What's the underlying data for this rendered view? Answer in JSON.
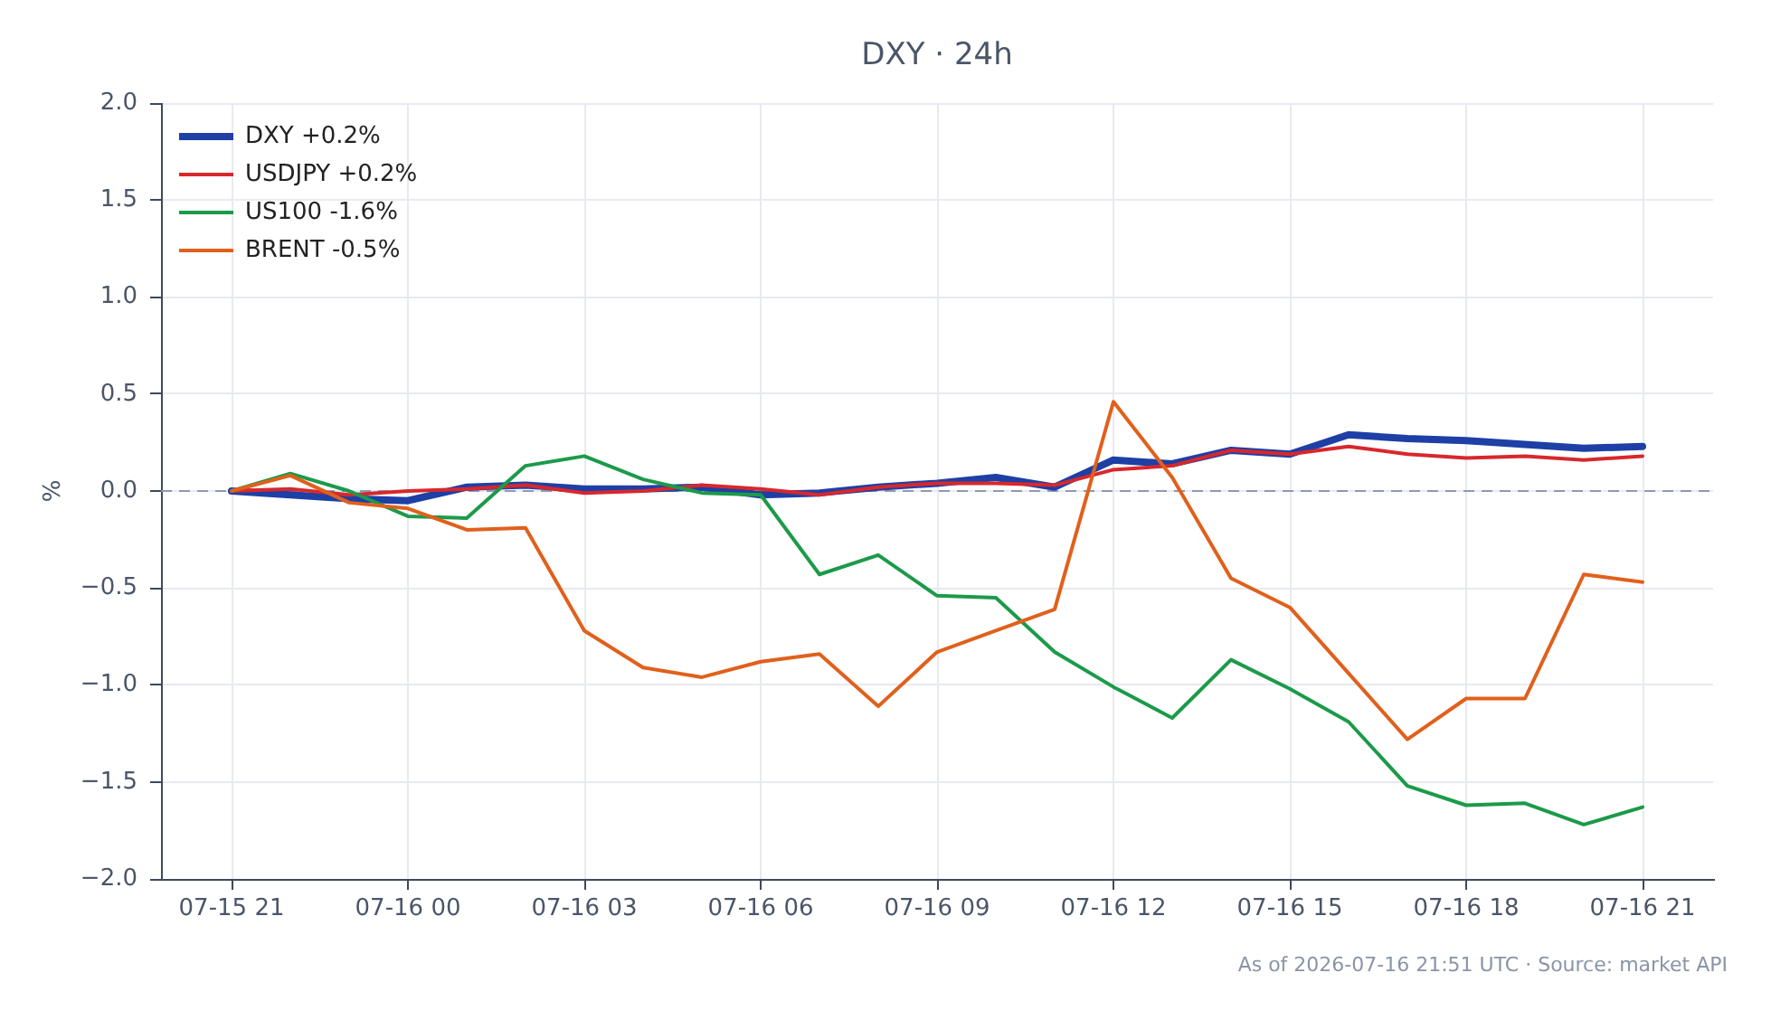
{
  "chart_data": {
    "type": "line",
    "title": "DXY · 24h",
    "ylabel": "%",
    "x": [
      "2026-07-15T21:00",
      "2026-07-15T22:00",
      "2026-07-15T23:00",
      "2026-07-16T00:00",
      "2026-07-16T01:00",
      "2026-07-16T02:00",
      "2026-07-16T03:00",
      "2026-07-16T04:00",
      "2026-07-16T05:00",
      "2026-07-16T06:00",
      "2026-07-16T07:00",
      "2026-07-16T08:00",
      "2026-07-16T09:00",
      "2026-07-16T10:00",
      "2026-07-16T11:00",
      "2026-07-16T12:00",
      "2026-07-16T13:00",
      "2026-07-16T14:00",
      "2026-07-16T15:00",
      "2026-07-16T16:00",
      "2026-07-16T17:00",
      "2026-07-16T18:00",
      "2026-07-16T19:00",
      "2026-07-16T20:00",
      "2026-07-16T21:00"
    ],
    "series": [
      {
        "name": "DXY +0.2%",
        "color": "#1e3fa6",
        "values": [
          0,
          -0.02,
          -0.04,
          -0.05,
          0.02,
          0.03,
          0.01,
          0.01,
          0.02,
          -0.02,
          -0.01,
          0.02,
          0.04,
          0.07,
          0.02,
          0.16,
          0.14,
          0.21,
          0.19,
          0.29,
          0.27,
          0.26,
          0.24,
          0.22,
          0.23
        ]
      },
      {
        "name": "USDJPY +0.2%",
        "color": "#d7282c",
        "values": [
          0,
          0.01,
          -0.02,
          0,
          0.01,
          0.03,
          -0.01,
          0,
          0.03,
          0.01,
          -0.02,
          0.02,
          0.04,
          0.04,
          0.03,
          0.11,
          0.13,
          0.21,
          0.19,
          0.23,
          0.19,
          0.17,
          0.18,
          0.16,
          0.18
        ]
      },
      {
        "name": "US100 -1.6%",
        "color": "#1c9a4a",
        "values": [
          0,
          0.09,
          0,
          -0.13,
          -0.14,
          0.13,
          0.18,
          0.06,
          -0.01,
          -0.02,
          -0.43,
          -0.33,
          -0.54,
          -0.55,
          -0.83,
          -1.01,
          -1.17,
          -0.87,
          -1.02,
          -1.19,
          -1.52,
          -1.62,
          -1.61,
          -1.72,
          -1.63
        ]
      },
      {
        "name": "BRENT -0.5%",
        "color": "#e0601c",
        "values": [
          0,
          0.08,
          -0.06,
          -0.09,
          -0.2,
          -0.19,
          -0.72,
          -0.91,
          -0.96,
          -0.88,
          -0.84,
          -1.11,
          -0.83,
          -0.72,
          -0.61,
          0.46,
          0.07,
          -0.45,
          -0.6,
          -0.94,
          -1.28,
          -1.07,
          -1.07,
          -0.43,
          -0.47
        ]
      }
    ],
    "xlim": [
      "2026-07-15T19:48",
      "2026-07-16T22:12"
    ],
    "xticks": [
      {
        "value": "2026-07-15T21:00",
        "label": "07-15 21"
      },
      {
        "value": "2026-07-16T00:00",
        "label": "07-16 00"
      },
      {
        "value": "2026-07-16T03:00",
        "label": "07-16 03"
      },
      {
        "value": "2026-07-16T06:00",
        "label": "07-16 06"
      },
      {
        "value": "2026-07-16T09:00",
        "label": "07-16 09"
      },
      {
        "value": "2026-07-16T12:00",
        "label": "07-16 12"
      },
      {
        "value": "2026-07-16T15:00",
        "label": "07-16 15"
      },
      {
        "value": "2026-07-16T18:00",
        "label": "07-16 18"
      },
      {
        "value": "2026-07-16T21:00",
        "label": "07-16 21"
      }
    ],
    "ylim": [
      -2,
      2
    ],
    "yticks": [
      {
        "value": -2,
        "label": "−2.0"
      },
      {
        "value": -1.5,
        "label": "−1.5"
      },
      {
        "value": -1,
        "label": "−1.0"
      },
      {
        "value": -0.5,
        "label": "−0.5"
      },
      {
        "value": 0,
        "label": "0.0"
      },
      {
        "value": 0.5,
        "label": "0.5"
      },
      {
        "value": 1,
        "label": "1.0"
      },
      {
        "value": 1.5,
        "label": "1.5"
      },
      {
        "value": 2,
        "label": "2.0"
      }
    ],
    "ref_lines": [
      {
        "axis": "y",
        "value": 0,
        "color": "#8f99b3",
        "line_style": "dashed"
      }
    ],
    "grid": true,
    "legend": "top left",
    "annotations": [
      "As of 2026-07-16 21:51 UTC · Source: market API"
    ]
  }
}
